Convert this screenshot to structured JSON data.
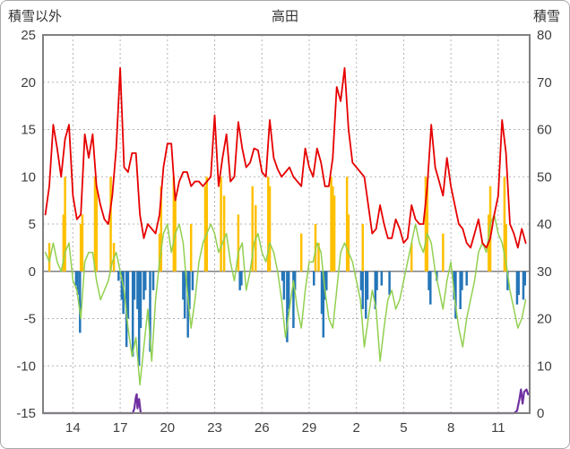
{
  "titles": {
    "left": "積雪以外",
    "center": "高田",
    "right": "積雪"
  },
  "chart_data": {
    "type": "line",
    "title": "高田",
    "left_axis_title": "積雪以外",
    "right_axis_title": "積雪",
    "x_domain": [
      12.1,
      43.0
    ],
    "x_ticks": {
      "positions": [
        14,
        17,
        20,
        23,
        26,
        29,
        32,
        35,
        38,
        41
      ],
      "labels": [
        "14",
        "17",
        "20",
        "23",
        "26",
        "29",
        "2",
        "5",
        "8",
        "11"
      ]
    },
    "y_left": {
      "min": -15,
      "max": 25,
      "step": 5,
      "tick_values": [
        25,
        20,
        15,
        10,
        5,
        0,
        -5,
        -10,
        -15
      ],
      "tick_labels": [
        "25",
        "20",
        "15",
        "10",
        "5",
        "0",
        "-5",
        "-10",
        "-15"
      ]
    },
    "y_right": {
      "min": 0,
      "max": 80,
      "step": 10,
      "tick_values": [
        80,
        70,
        60,
        50,
        40,
        30,
        20,
        10,
        0
      ],
      "tick_labels": [
        "80",
        "70",
        "60",
        "50",
        "40",
        "30",
        "20",
        "10",
        "0"
      ]
    },
    "grid": {
      "color": "#b3b3b3",
      "dash": "2,3",
      "border_color": "#808080",
      "zero_line_color": "#808080"
    },
    "series": [
      {
        "name": "yellow-bars",
        "type": "bar",
        "axis": "left",
        "color": "#ffc000",
        "bar_width": 2.5,
        "points": [
          [
            12.5,
            3
          ],
          [
            13.4,
            6
          ],
          [
            13.5,
            10
          ],
          [
            14.5,
            5
          ],
          [
            14.6,
            6
          ],
          [
            15.4,
            10
          ],
          [
            15.5,
            9
          ],
          [
            16.4,
            10
          ],
          [
            16.6,
            3
          ],
          [
            19.5,
            4
          ],
          [
            19.6,
            9
          ],
          [
            20.4,
            10
          ],
          [
            20.5,
            8
          ],
          [
            21.5,
            5
          ],
          [
            22.4,
            9
          ],
          [
            22.5,
            10
          ],
          [
            23.4,
            10
          ],
          [
            23.6,
            8
          ],
          [
            24.5,
            6
          ],
          [
            25.4,
            9
          ],
          [
            25.6,
            7
          ],
          [
            26.4,
            10
          ],
          [
            26.5,
            9
          ],
          [
            28.5,
            4
          ],
          [
            29.4,
            5
          ],
          [
            29.6,
            3
          ],
          [
            30.4,
            10
          ],
          [
            30.5,
            9
          ],
          [
            30.6,
            8
          ],
          [
            31.4,
            10
          ],
          [
            31.5,
            6
          ],
          [
            32.4,
            5
          ],
          [
            35.5,
            3
          ],
          [
            36.4,
            10
          ],
          [
            36.5,
            9
          ],
          [
            37.5,
            4
          ],
          [
            40.4,
            6
          ],
          [
            40.5,
            9
          ],
          [
            41.4,
            10
          ],
          [
            41.5,
            5
          ]
        ]
      },
      {
        "name": "blue-bars",
        "type": "bar",
        "axis": "left",
        "color": "#2576b9",
        "bar_width": 2.5,
        "points": [
          [
            14.2,
            -1.5
          ],
          [
            14.3,
            -2.5
          ],
          [
            14.45,
            -6.5
          ],
          [
            16.9,
            -1
          ],
          [
            17.1,
            -3
          ],
          [
            17.2,
            -4.5
          ],
          [
            17.4,
            -8
          ],
          [
            17.5,
            -5
          ],
          [
            17.8,
            -9
          ],
          [
            17.9,
            -3
          ],
          [
            18.1,
            -4
          ],
          [
            18.2,
            -10
          ],
          [
            18.3,
            -6
          ],
          [
            18.5,
            -3
          ],
          [
            18.6,
            -2
          ],
          [
            18.9,
            -8.5
          ],
          [
            19.1,
            -2
          ],
          [
            21.0,
            -3
          ],
          [
            21.1,
            -5
          ],
          [
            21.3,
            -7
          ],
          [
            21.4,
            -4
          ],
          [
            21.6,
            -2
          ],
          [
            24.6,
            -2
          ],
          [
            24.7,
            -1.5
          ],
          [
            27.3,
            -1
          ],
          [
            27.4,
            -3
          ],
          [
            27.6,
            -7.5
          ],
          [
            27.7,
            -4
          ],
          [
            28.0,
            -6
          ],
          [
            28.1,
            -2
          ],
          [
            29.3,
            -1.5
          ],
          [
            29.8,
            -4.5
          ],
          [
            29.9,
            -7
          ],
          [
            30.0,
            -3
          ],
          [
            30.1,
            -2
          ],
          [
            32.3,
            -2
          ],
          [
            32.4,
            -4
          ],
          [
            32.6,
            -5
          ],
          [
            32.7,
            -3
          ],
          [
            33.2,
            -4
          ],
          [
            33.3,
            -2
          ],
          [
            33.6,
            -1.5
          ],
          [
            34.1,
            -2.5
          ],
          [
            36.6,
            -2
          ],
          [
            36.7,
            -3.5
          ],
          [
            37.1,
            -1
          ],
          [
            38.2,
            -3
          ],
          [
            38.3,
            -5
          ],
          [
            38.6,
            -4
          ],
          [
            38.7,
            -2
          ],
          [
            39.0,
            -1.5
          ],
          [
            41.6,
            -2
          ],
          [
            42.2,
            -3.5
          ],
          [
            42.3,
            -2.5
          ],
          [
            42.6,
            -3
          ],
          [
            42.7,
            -1.5
          ]
        ]
      },
      {
        "name": "green-line",
        "type": "line",
        "axis": "left",
        "color": "#92d050",
        "width": 1.5,
        "x_start": 12.25,
        "dx": 0.25,
        "values": [
          2,
          1,
          3,
          1,
          0,
          2,
          3,
          -1,
          -2,
          -5,
          1,
          2,
          2,
          -1,
          -3,
          -2,
          -1,
          1,
          2,
          0,
          -2,
          -6,
          -9,
          -7,
          -12,
          -8,
          -4,
          -9.5,
          -3,
          1,
          4,
          5,
          2,
          4,
          5,
          3,
          -2,
          -6,
          -3,
          1,
          3,
          4,
          5,
          4,
          2,
          3,
          4,
          1,
          -1,
          2,
          3,
          -2,
          0,
          3,
          4,
          2,
          1,
          3,
          2,
          0,
          -3,
          -7,
          -4,
          -1,
          -4,
          -6,
          -2,
          1,
          1,
          3,
          2,
          -2,
          -5,
          -6,
          -2,
          2,
          3,
          2,
          1,
          -1,
          -3,
          -8,
          -5,
          -2,
          -4,
          -9.5,
          -6,
          -3,
          -2,
          -4,
          -3,
          -1,
          1,
          3,
          5,
          3,
          2,
          4,
          3,
          0,
          -2,
          -4,
          -1,
          1,
          -3,
          -6,
          -8,
          -5,
          -3,
          -1,
          2,
          3,
          2,
          5,
          6,
          4,
          3,
          1,
          -2,
          -4,
          -6,
          -5,
          -3
        ]
      },
      {
        "name": "red-line",
        "type": "line",
        "axis": "left",
        "color": "#e60000",
        "width": 1.8,
        "x_start": 12.25,
        "dx": 0.25,
        "values": [
          6,
          9,
          15.5,
          13,
          10,
          14,
          15.5,
          8,
          5.5,
          6,
          14.5,
          12,
          14.5,
          9,
          7,
          5.5,
          5,
          8,
          13,
          21.5,
          11,
          10.5,
          12.5,
          12.5,
          6,
          3.5,
          5,
          4.5,
          4,
          6,
          11,
          13.5,
          13.5,
          7.5,
          9.5,
          10.5,
          10.5,
          9,
          9.5,
          9.5,
          9,
          9.5,
          10,
          16.5,
          9,
          12,
          14.5,
          9.5,
          10,
          15.8,
          13,
          11,
          11.5,
          13,
          12.8,
          10.5,
          10,
          16,
          12,
          10.8,
          10,
          10.5,
          11,
          10,
          9.5,
          9,
          13,
          11,
          10,
          13,
          11.5,
          9,
          9,
          12,
          19.5,
          18,
          21.5,
          15,
          11.5,
          11,
          10.5,
          10,
          7,
          4,
          4.5,
          7,
          5,
          3.5,
          3.5,
          5.5,
          4.5,
          3,
          3.5,
          7,
          5.5,
          5,
          5,
          9,
          15.5,
          11,
          9.5,
          8,
          12,
          9,
          7,
          5,
          4.5,
          3,
          2.5,
          4,
          5.5,
          3,
          2.5,
          3.5,
          6,
          8,
          16,
          12.5,
          5,
          4,
          2.5,
          4.5,
          3
        ]
      },
      {
        "name": "purple-line",
        "type": "line",
        "axis": "right",
        "color": "#7030a0",
        "width": 2.2,
        "points": [
          [
            12.1,
            0
          ],
          [
            17.8,
            0
          ],
          [
            17.9,
            1
          ],
          [
            18.0,
            3.5
          ],
          [
            18.05,
            4
          ],
          [
            18.1,
            1
          ],
          [
            18.2,
            3
          ],
          [
            18.3,
            0
          ],
          [
            42.0,
            0
          ],
          [
            42.2,
            0.5
          ],
          [
            42.35,
            3
          ],
          [
            42.45,
            5
          ],
          [
            42.55,
            2
          ],
          [
            42.65,
            4.5
          ],
          [
            42.8,
            5
          ],
          [
            42.9,
            4
          ]
        ]
      }
    ]
  }
}
